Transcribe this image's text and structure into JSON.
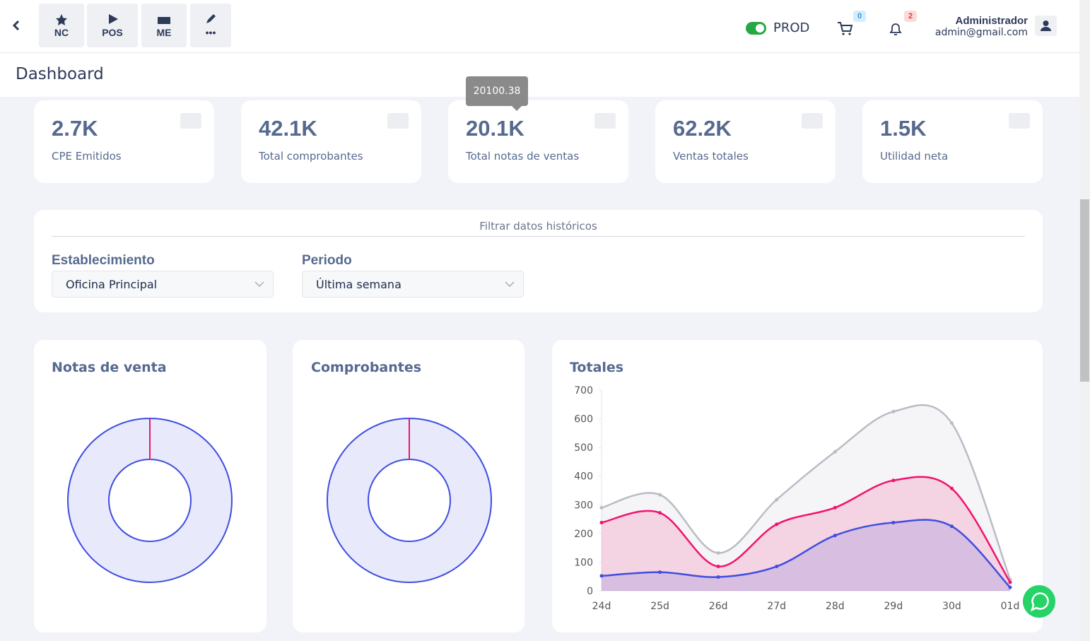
{
  "topbar": {
    "buttons": [
      {
        "label": "NC"
      },
      {
        "label": "POS"
      },
      {
        "label": "ME"
      },
      {
        "label": "•••"
      }
    ],
    "mode": "PROD",
    "cart_count": 0,
    "notifications": 2,
    "user": {
      "name": "Administrador",
      "email": "admin@gmail.com"
    }
  },
  "page_title": "Dashboard",
  "tooltip": "20100.38",
  "stats": [
    {
      "value": "2.7K",
      "label": "CPE Emitidos"
    },
    {
      "value": "42.1K",
      "label": "Total comprobantes"
    },
    {
      "value": "20.1K",
      "label": "Total notas de ventas"
    },
    {
      "value": "62.2K",
      "label": "Ventas totales"
    },
    {
      "value": "1.5K",
      "label": "Utilidad neta"
    }
  ],
  "filter": {
    "title": "Filtrar datos históricos",
    "fields": [
      {
        "label": "Establecimiento",
        "value": "Oficina Principal"
      },
      {
        "label": "Periodo",
        "value": "Última semana"
      }
    ]
  },
  "chart_data": [
    {
      "type": "donut",
      "title": "Notas de venta",
      "values": [
        100,
        0
      ],
      "colors": [
        "#3f4de0",
        "#f0136e"
      ]
    },
    {
      "type": "donut",
      "title": "Comprobantes",
      "values": [
        100,
        0
      ],
      "colors": [
        "#3f4de0",
        "#f0136e"
      ]
    },
    {
      "type": "line",
      "title": "Totales",
      "categories": [
        "24d",
        "25d",
        "26d",
        "27d",
        "28d",
        "29d",
        "30d",
        "01d"
      ],
      "series": [
        {
          "color": "#b9bcc6",
          "values": [
            290,
            335,
            132,
            318,
            485,
            625,
            585,
            40
          ]
        },
        {
          "color": "#f0136e",
          "values": [
            238,
            272,
            85,
            232,
            290,
            385,
            357,
            30
          ]
        },
        {
          "color": "#3f4de0",
          "values": [
            52,
            65,
            48,
            85,
            193,
            238,
            225,
            12
          ]
        }
      ],
      "ylim": [
        0,
        700
      ],
      "yticks": [
        0,
        100,
        200,
        300,
        400,
        500,
        600,
        700
      ],
      "area": true
    }
  ]
}
